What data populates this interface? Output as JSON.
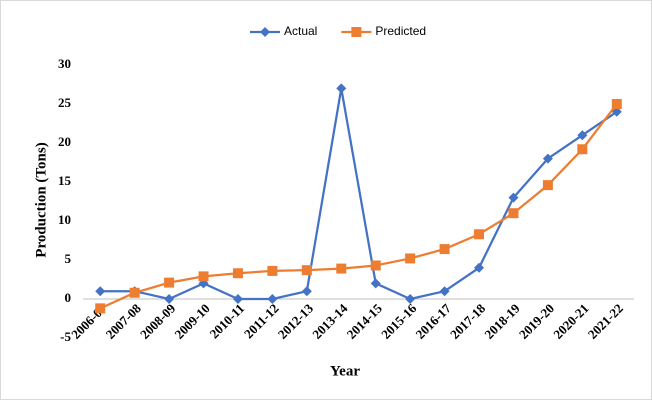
{
  "chart_data": {
    "type": "line",
    "x_label": "Year",
    "y_label": "Production (Tons)",
    "categories": [
      "2006-07",
      "2007-08",
      "2008-09",
      "2009-10",
      "2010-11",
      "2011-12",
      "2012-13",
      "2013-14",
      "2014-15",
      "2015-16",
      "2016-17",
      "2017-18",
      "2018-19",
      "2019-20",
      "2020-21",
      "2021-22"
    ],
    "series": [
      {
        "name": "Actual",
        "color": "#4472c4",
        "marker": "diamond",
        "values": [
          1,
          1,
          0,
          2,
          0,
          0,
          1,
          27,
          2,
          0,
          1,
          4,
          13,
          18,
          21,
          24
        ]
      },
      {
        "name": "Predicted",
        "color": "#ed7d31",
        "marker": "square",
        "values": [
          -1.2,
          0.8,
          2.1,
          2.9,
          3.3,
          3.6,
          3.7,
          3.9,
          4.3,
          5.2,
          6.4,
          8.3,
          11,
          14.6,
          19.2,
          25
        ]
      }
    ],
    "ylim": [
      -5,
      30
    ],
    "yticks": [
      -5,
      0,
      5,
      10,
      15,
      20,
      25,
      30
    ],
    "grid": false,
    "legend": "top"
  }
}
